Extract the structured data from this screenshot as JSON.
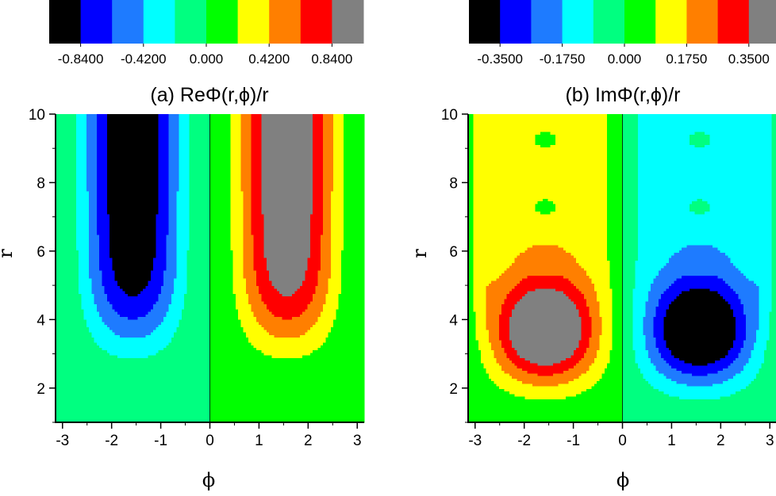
{
  "chart_data": [
    {
      "type": "heatmap",
      "id": "a",
      "title": "(a) ReΦ(r,ϕ)/r",
      "xlabel": "ϕ",
      "ylabel": "r",
      "xlim": [
        -3.1416,
        3.1416
      ],
      "ylim": [
        1,
        10
      ],
      "x_ticks": [
        "-3",
        "-2",
        "-1",
        "0",
        "1",
        "2",
        "3"
      ],
      "y_ticks": [
        "2",
        "4",
        "6",
        "8",
        "10"
      ],
      "colorbar": {
        "colors": [
          "#000000",
          "#0000ff",
          "#1e7bff",
          "#00ffff",
          "#00ff80",
          "#00ff00",
          "#ffff00",
          "#ff7f00",
          "#ff0000",
          "#808080"
        ],
        "labels": [
          "-0.8400",
          "-0.4200",
          "0.000",
          "0.4200",
          "0.8400"
        ],
        "levels": [
          -1.05,
          -0.84,
          -0.63,
          -0.42,
          -0.21,
          0.0,
          0.21,
          0.42,
          0.63,
          0.84,
          1.05
        ],
        "label_level_indices": [
          1,
          3,
          5,
          7,
          9
        ]
      }
    },
    {
      "type": "heatmap",
      "id": "b",
      "title": "(b) ImΦ(r,ϕ)/r",
      "xlabel": "ϕ",
      "ylabel": "r",
      "xlim": [
        -3.1416,
        3.1416
      ],
      "ylim": [
        1,
        10
      ],
      "x_ticks": [
        "-3",
        "-2",
        "-1",
        "0",
        "1",
        "2",
        "3"
      ],
      "y_ticks": [
        "2",
        "4",
        "6",
        "8",
        "10"
      ],
      "colorbar": {
        "colors": [
          "#000000",
          "#0000ff",
          "#1e7bff",
          "#00ffff",
          "#00ff80",
          "#00ff00",
          "#ffff00",
          "#ff7f00",
          "#ff0000",
          "#808080"
        ],
        "labels": [
          "-0.3500",
          "-0.1750",
          "0.000",
          "0.1750",
          "0.3500"
        ],
        "levels": [
          -0.4375,
          -0.35,
          -0.2625,
          -0.175,
          -0.0875,
          0.0,
          0.0875,
          0.175,
          0.2625,
          0.35,
          0.4375
        ],
        "label_level_indices": [
          1,
          3,
          5,
          7,
          9
        ]
      }
    }
  ]
}
